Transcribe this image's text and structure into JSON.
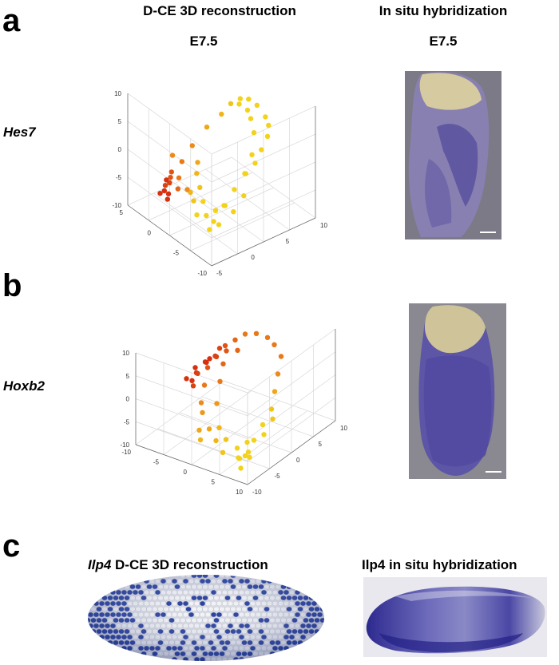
{
  "headers": {
    "left": "D-CE 3D reconstruction",
    "right": "In situ hybridization",
    "stage_left": "E7.5",
    "stage_right": "E7.5"
  },
  "panel_a": {
    "letter": "a",
    "gene": "Hes7",
    "ticks": {
      "z": [
        "10",
        "5",
        "0",
        "-5",
        "-10"
      ],
      "left": [
        "5",
        "0",
        "-5",
        "-10"
      ],
      "right": [
        "-5",
        "0",
        "5",
        "10"
      ]
    }
  },
  "panel_b": {
    "letter": "b",
    "gene": "Hoxb2",
    "ticks": {
      "z": [
        "10",
        "5",
        "0",
        "-5",
        "-10"
      ],
      "left": [
        "-10",
        "-5",
        "0",
        "5",
        "10"
      ],
      "right": [
        "-10",
        "-5",
        "0",
        "5",
        "10"
      ]
    }
  },
  "panel_c": {
    "letter": "c",
    "left_caption_gene": "Ilp4",
    "left_caption_rest": " D-CE 3D reconstruction",
    "right_caption": "Ilp4 in situ hybridization"
  },
  "colors": {
    "yellow": "#f2d21a",
    "orange": "#ec8a1a",
    "red": "#d6300f",
    "stain": "#4b45a0",
    "cell_blue": "#243d9e"
  },
  "chart_data": [
    {
      "type": "scatter",
      "title": "",
      "xlabel": "",
      "ylabel": "",
      "grid": true,
      "xlim": [
        -10,
        10
      ],
      "ylim": [
        -10,
        10
      ],
      "zlim": [
        -10,
        10
      ],
      "points": [
        [
          -8,
          -8,
          -4
        ],
        [
          -8,
          -6,
          -2
        ],
        [
          -8,
          -4,
          0
        ],
        [
          -8,
          -2,
          2
        ],
        [
          -8,
          0,
          3
        ],
        [
          -7,
          2,
          4
        ],
        [
          -6,
          4,
          5
        ],
        [
          -5,
          5,
          6
        ],
        [
          -3,
          6,
          6
        ],
        [
          -1,
          6,
          7
        ],
        [
          1,
          6,
          7
        ],
        [
          3,
          6,
          6
        ],
        [
          4,
          5,
          5
        ],
        [
          5,
          4,
          3
        ],
        [
          6,
          2,
          1
        ],
        [
          7,
          0,
          -2
        ],
        [
          7,
          -2,
          -4
        ],
        [
          7,
          -4,
          -5
        ],
        [
          6,
          -6,
          -6
        ],
        [
          5,
          -7,
          -6
        ],
        [
          3,
          -8,
          -6
        ],
        [
          -8,
          -7,
          -5
        ],
        [
          -7,
          -5,
          -3
        ],
        [
          -6,
          -6,
          -4
        ],
        [
          -9,
          -3,
          -1
        ],
        [
          -7,
          -1,
          1
        ],
        [
          -6,
          1,
          3
        ],
        [
          -4,
          3,
          5
        ],
        [
          -2,
          4,
          6
        ],
        [
          0,
          5,
          6
        ],
        [
          2,
          5,
          6
        ],
        [
          -7,
          -8,
          -6
        ],
        [
          -5,
          -7,
          -5
        ],
        [
          -3,
          -6,
          -4
        ],
        [
          -1,
          -5,
          -3
        ],
        [
          1,
          -4,
          -2
        ],
        [
          2,
          -3,
          -1
        ],
        [
          4,
          -5,
          -4
        ],
        [
          6,
          -5,
          -5
        ],
        [
          5,
          -6,
          -5
        ],
        [
          4,
          -7,
          -6
        ],
        [
          6,
          -7,
          -7
        ],
        [
          7,
          -5,
          -6
        ],
        [
          3,
          -6,
          -5
        ],
        [
          8,
          -3,
          -3
        ],
        [
          -9,
          -5,
          -3
        ],
        [
          -4,
          -8,
          -5
        ],
        [
          -2,
          -7,
          -4
        ],
        [
          0,
          -6,
          -4
        ],
        [
          2,
          -5,
          -5
        ]
      ],
      "intensity": [
        0,
        0,
        0,
        0,
        0,
        0,
        0,
        0,
        0,
        0,
        0,
        0,
        0.1,
        0.2,
        0.3,
        0.5,
        0.6,
        0.8,
        0.9,
        1,
        1,
        0,
        0,
        0,
        0,
        0,
        0,
        0,
        0,
        0,
        0,
        0,
        0,
        0,
        0.1,
        0.2,
        0.3,
        0.6,
        0.8,
        0.9,
        1,
        1,
        1,
        0.7,
        0.5,
        0,
        0,
        0.1,
        0.2,
        0.5
      ]
    },
    {
      "type": "scatter",
      "title": "",
      "xlabel": "",
      "ylabel": "",
      "grid": true,
      "xlim": [
        -10,
        10
      ],
      "ylim": [
        -10,
        10
      ],
      "zlim": [
        -10,
        10
      ],
      "points": [
        [
          -8,
          -8,
          -6
        ],
        [
          -8,
          -6,
          -4
        ],
        [
          -8,
          -4,
          -2
        ],
        [
          -8,
          -2,
          0
        ],
        [
          -7,
          0,
          2
        ],
        [
          -6,
          2,
          4
        ],
        [
          -5,
          4,
          6
        ],
        [
          -3,
          5,
          7
        ],
        [
          -1,
          6,
          7
        ],
        [
          1,
          6,
          7
        ],
        [
          3,
          6,
          6
        ],
        [
          4,
          5,
          5
        ],
        [
          5,
          4,
          4
        ],
        [
          6,
          3,
          2
        ],
        [
          7,
          2,
          1
        ],
        [
          7,
          0,
          0
        ],
        [
          6,
          -1,
          1
        ],
        [
          5,
          0,
          2
        ],
        [
          8,
          1,
          0
        ],
        [
          6,
          4,
          3
        ],
        [
          7,
          3,
          1
        ],
        [
          -8,
          -7,
          -7
        ],
        [
          -7,
          -8,
          -7
        ],
        [
          -6,
          -7,
          -8
        ],
        [
          -4,
          -8,
          -7
        ],
        [
          -2,
          -7,
          -6
        ],
        [
          0,
          -6,
          -5
        ],
        [
          2,
          -5,
          -3
        ],
        [
          3,
          -4,
          -2
        ],
        [
          4,
          -2,
          0
        ],
        [
          -9,
          -5,
          -3
        ],
        [
          -9,
          -3,
          -1
        ],
        [
          -6,
          -5,
          -6
        ],
        [
          -5,
          -6,
          -7
        ],
        [
          -3,
          -6,
          -6
        ],
        [
          -1,
          -5,
          -5
        ],
        [
          1,
          -3,
          -2
        ],
        [
          2,
          -1,
          1
        ],
        [
          3,
          1,
          3
        ],
        [
          4,
          3,
          4
        ],
        [
          5,
          2,
          3
        ],
        [
          6,
          1,
          2
        ],
        [
          7,
          -1,
          -1
        ],
        [
          8,
          -1,
          -1
        ],
        [
          6,
          -2,
          -1
        ],
        [
          -7,
          -6,
          -7
        ],
        [
          -8,
          -9,
          -8
        ],
        [
          0,
          -8,
          -6
        ],
        [
          1,
          -7,
          -5
        ],
        [
          2,
          3,
          5
        ]
      ],
      "intensity": [
        0,
        0,
        0,
        0.1,
        0.3,
        0.5,
        0.6,
        0.6,
        0.6,
        0.6,
        0.6,
        0.7,
        0.8,
        0.9,
        1,
        1,
        0.9,
        0.8,
        1,
        0.9,
        1,
        0,
        0,
        0,
        0.1,
        0.2,
        0.3,
        0.4,
        0.5,
        0.6,
        0,
        0.1,
        0,
        0,
        0.1,
        0.2,
        0.4,
        0.6,
        0.7,
        0.8,
        0.9,
        1,
        1,
        1,
        0.9,
        0,
        0,
        0.2,
        0.3,
        0.7
      ]
    }
  ]
}
